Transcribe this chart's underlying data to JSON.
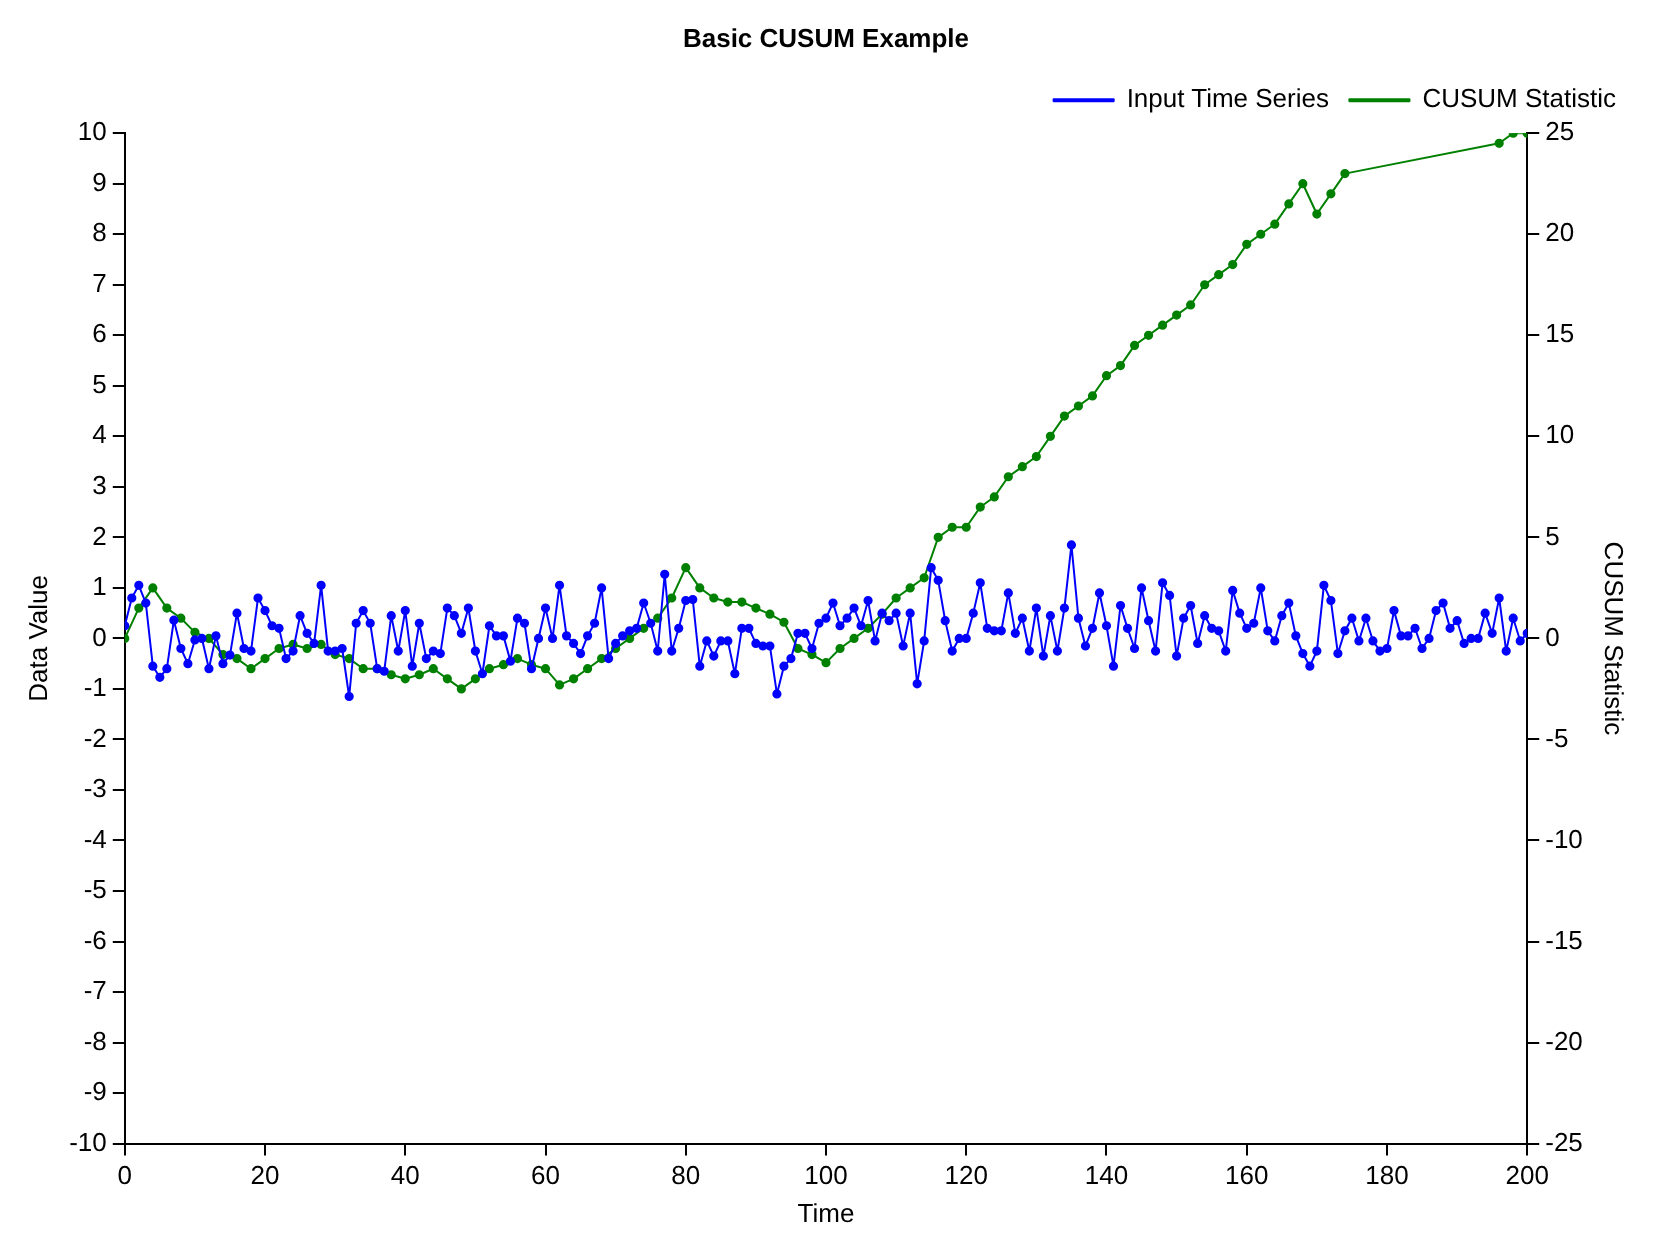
{
  "chart_data": {
    "type": "line",
    "title": "Basic CUSUM Example",
    "xlabel": "Time",
    "ylabel": "Data Value",
    "y2label": "CUSUM Statistic",
    "xlim": [
      0,
      200
    ],
    "xticks": [
      0,
      20,
      40,
      60,
      80,
      100,
      120,
      140,
      160,
      180,
      200
    ],
    "ylim": [
      -10,
      10
    ],
    "yticks": [
      -10,
      -9,
      -8,
      -7,
      -6,
      -5,
      -4,
      -3,
      -2,
      -1,
      0,
      1,
      2,
      3,
      4,
      5,
      6,
      7,
      8,
      9,
      10
    ],
    "y2lim": [
      -25,
      25
    ],
    "y2ticks": [
      -25,
      -20,
      -15,
      -10,
      -5,
      0,
      5,
      10,
      15,
      20,
      25
    ],
    "legend": "top right",
    "marker": "circle",
    "line_style": "solid",
    "grid": false,
    "series": [
      {
        "name": "Input Time Series",
        "color": "#0000ff",
        "x": [
          0,
          1,
          2,
          3,
          4,
          5,
          6,
          7,
          8,
          9,
          10,
          11,
          12,
          13,
          14,
          15,
          16,
          17,
          18,
          19,
          20,
          21,
          22,
          23,
          24,
          25,
          26,
          27,
          28,
          29,
          30,
          31,
          32,
          33,
          34,
          35,
          36,
          37,
          38,
          39,
          40,
          41,
          42,
          43,
          44,
          45,
          46,
          47,
          48,
          49,
          50,
          51,
          52,
          53,
          54,
          55,
          56,
          57,
          58,
          59,
          60,
          61,
          62,
          63,
          64,
          65,
          66,
          67,
          68,
          69,
          70,
          71,
          72,
          73,
          74,
          75,
          76,
          77,
          78,
          79,
          80,
          81,
          82,
          83,
          84,
          85,
          86,
          87,
          88,
          89,
          90,
          91,
          92,
          93,
          94,
          95,
          96,
          97,
          98,
          99,
          100,
          101,
          102,
          103,
          104,
          105,
          106,
          107,
          108,
          109,
          110,
          111,
          112,
          113,
          114,
          115,
          116,
          117,
          118,
          119,
          120,
          121,
          122,
          123,
          124,
          125,
          126,
          127,
          128,
          129,
          130,
          131,
          132,
          133,
          134,
          135,
          136,
          137,
          138,
          139,
          140,
          141,
          142,
          143,
          144,
          145,
          146,
          147,
          148,
          149,
          150,
          151,
          152,
          153,
          154,
          155,
          156,
          157,
          158,
          159,
          160,
          161,
          162,
          163,
          164,
          165,
          166,
          167,
          168,
          169,
          170,
          171,
          172,
          173,
          174,
          175,
          176,
          177,
          178,
          179,
          180,
          181,
          182,
          183,
          184,
          185,
          186,
          187,
          188,
          189,
          190,
          191,
          192,
          193,
          194,
          195,
          196,
          197,
          198,
          199,
          200
        ],
        "values": [
          0.25,
          0.8,
          1.05,
          0.7,
          -0.55,
          -0.77,
          -0.6,
          0.36,
          -0.2,
          -0.5,
          -0.03,
          0,
          -0.6,
          0.05,
          -0.5,
          -0.33,
          0.5,
          -0.2,
          -0.25,
          0.8,
          0.55,
          0.25,
          0.2,
          -0.4,
          -0.25,
          0.45,
          0.1,
          -0.1,
          1.05,
          -0.25,
          -0.25,
          -0.2,
          -1.15,
          0.3,
          0.55,
          0.3,
          -0.6,
          -0.65,
          0.45,
          -0.25,
          0.55,
          -0.55,
          0.3,
          -0.4,
          -0.25,
          -0.3,
          0.6,
          0.45,
          0.1,
          0.6,
          -0.25,
          -0.7,
          0.25,
          0.05,
          0.05,
          -0.45,
          0.4,
          0.3,
          -0.6,
          0,
          0.6,
          0,
          1.05,
          0.05,
          -0.1,
          -0.3,
          0.05,
          0.3,
          1.0,
          -0.4,
          -0.1,
          0.05,
          0.15,
          0.2,
          0.7,
          0.3,
          -0.25,
          1.27,
          -0.25,
          0.2,
          0.75,
          0.77,
          -0.55,
          -0.05,
          -0.35,
          -0.05,
          -0.05,
          -0.7,
          0.2,
          0.2,
          -0.1,
          -0.15,
          -0.15,
          -1.1,
          -0.55,
          -0.4,
          0.1,
          0.1,
          -0.2,
          0.3,
          0.4,
          0.7,
          0.25,
          0.4,
          0.6,
          0.25,
          0.75,
          -0.05,
          0.5,
          0.35,
          0.5,
          -0.15,
          0.5,
          -0.9,
          -0.05,
          1.4,
          1.15,
          0.35,
          -0.25,
          0,
          0,
          0.5,
          1.1,
          0.2,
          0.15,
          0.15,
          0.9,
          0.1,
          0.4,
          -0.25,
          0.6,
          -0.35,
          0.45,
          -0.25,
          0.6,
          1.85,
          0.4,
          -0.15,
          0.2,
          0.9,
          0.25,
          -0.55,
          0.65,
          0.2,
          -0.2,
          1.0,
          0.35,
          -0.25,
          1.1,
          0.85,
          -0.35,
          0.4,
          0.65,
          -0.1,
          0.45,
          0.2,
          0.15,
          -0.25,
          0.95,
          0.5,
          0.2,
          0.3,
          1.0,
          0.15,
          -0.05,
          0.45,
          0.7,
          0.05,
          -0.3,
          -0.55,
          -0.25,
          1.05,
          0.75,
          -0.3,
          0.15,
          0.4,
          -0.05,
          0.4,
          -0.05,
          -0.25,
          -0.2,
          0.55,
          0.05,
          0.05,
          0.2,
          -0.2,
          0,
          0.55,
          0.7,
          0.2,
          0.35,
          -0.1,
          0,
          0,
          0.5,
          0.1,
          0.8,
          -0.25,
          0.4,
          -0.05,
          0.1
        ]
      },
      {
        "name": "CUSUM Statistic",
        "color": "#008000",
        "axis": "y2",
        "x": [
          0,
          2,
          4,
          6,
          8,
          10,
          12,
          14,
          16,
          18,
          20,
          22,
          24,
          26,
          28,
          30,
          32,
          34,
          36,
          38,
          40,
          42,
          44,
          46,
          48,
          50,
          52,
          54,
          56,
          58,
          60,
          62,
          64,
          66,
          68,
          70,
          72,
          74,
          76,
          78,
          80,
          82,
          84,
          86,
          88,
          90,
          92,
          94,
          96,
          98,
          100,
          102,
          104,
          106,
          108,
          110,
          112,
          114,
          116,
          118,
          120,
          122,
          124,
          126,
          128,
          130,
          132,
          134,
          136,
          138,
          140,
          142,
          144,
          146,
          148,
          150,
          152,
          154,
          156,
          158,
          160,
          162,
          164,
          166,
          168,
          170,
          172,
          174,
          196,
          198,
          200
        ],
        "values": [
          0,
          1.5,
          2.5,
          1.5,
          1,
          0.3,
          0,
          -0.8,
          -1,
          -1.5,
          -1,
          -0.5,
          -0.3,
          -0.5,
          -0.3,
          -0.8,
          -1,
          -1.5,
          -1.5,
          -1.8,
          -2,
          -1.8,
          -1.5,
          -2,
          -2.5,
          -2,
          -1.5,
          -1.3,
          -1,
          -1.3,
          -1.5,
          -2.3,
          -2,
          -1.5,
          -1,
          -0.5,
          0,
          0.5,
          1,
          2,
          3.5,
          2.5,
          2,
          1.8,
          1.8,
          1.5,
          1.2,
          0.8,
          -0.5,
          -0.8,
          -1.2,
          -0.5,
          0,
          0.5,
          1.2,
          2,
          2.5,
          3,
          5,
          5.5,
          5.5,
          6.5,
          7,
          8,
          8.5,
          9,
          10,
          11,
          11.5,
          12,
          13,
          13.5,
          14.5,
          15,
          15.5,
          16,
          16.5,
          17.5,
          18,
          18.5,
          19.5,
          20,
          20.5,
          21.5,
          22.5,
          21,
          22,
          23,
          24.5,
          25,
          25
        ]
      }
    ]
  }
}
